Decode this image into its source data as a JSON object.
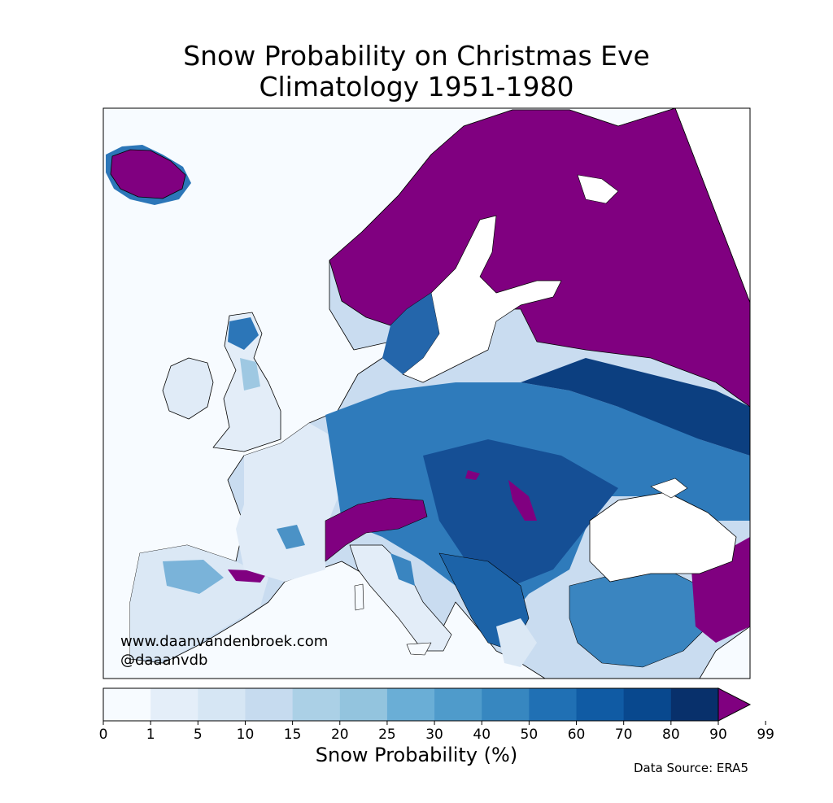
{
  "title": {
    "line1": "Snow Probability on Christmas Eve",
    "line2": "Climatology 1951-1980"
  },
  "credits": {
    "website": "www.daanvandenbroek.com",
    "handle": "@daaanvdb"
  },
  "colorbar": {
    "label": "Snow Probability (%)",
    "ticks": [
      "0",
      "1",
      "5",
      "10",
      "15",
      "20",
      "25",
      "30",
      "40",
      "50",
      "60",
      "70",
      "80",
      "90",
      "99"
    ],
    "colors": [
      "#f7fbff",
      "#e4eef9",
      "#d6e6f4",
      "#c6dbef",
      "#abd0e6",
      "#93c4de",
      "#6aaed6",
      "#4f9bcb",
      "#3787c0",
      "#2070b4",
      "#105ba4",
      "#08488e",
      "#08306b"
    ],
    "over_color": "#800080"
  },
  "source": "Data Source: ERA5",
  "colors": {
    "sea": "#f7fbff",
    "extend": "#800080",
    "border": "#000000"
  }
}
